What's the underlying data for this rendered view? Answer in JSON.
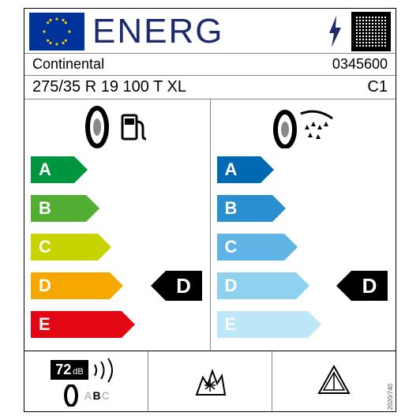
{
  "header": {
    "title": "ENERG"
  },
  "brand": "Continental",
  "article": "0345600",
  "spec": "275/35 R 19 100 T XL",
  "tire_class": "C1",
  "fuel": {
    "letters": [
      "A",
      "B",
      "C",
      "D",
      "E"
    ],
    "colors": [
      "#009640",
      "#52ae32",
      "#c8d400",
      "#f6a800",
      "#e30613"
    ],
    "widths": [
      55,
      70,
      85,
      100,
      115
    ],
    "rating": "D",
    "rating_index": 3
  },
  "wet": {
    "letters": [
      "A",
      "B",
      "C",
      "D",
      "E"
    ],
    "colors": [
      "#0069b4",
      "#2a8fcf",
      "#5fb4e5",
      "#8fd2f0",
      "#bde6f7"
    ],
    "widths": [
      55,
      70,
      85,
      100,
      115
    ],
    "rating": "D",
    "rating_index": 3
  },
  "noise": {
    "db": "72",
    "unit": "dB",
    "classes": "ABC",
    "active_index": 1
  },
  "regulation": "2020/740"
}
